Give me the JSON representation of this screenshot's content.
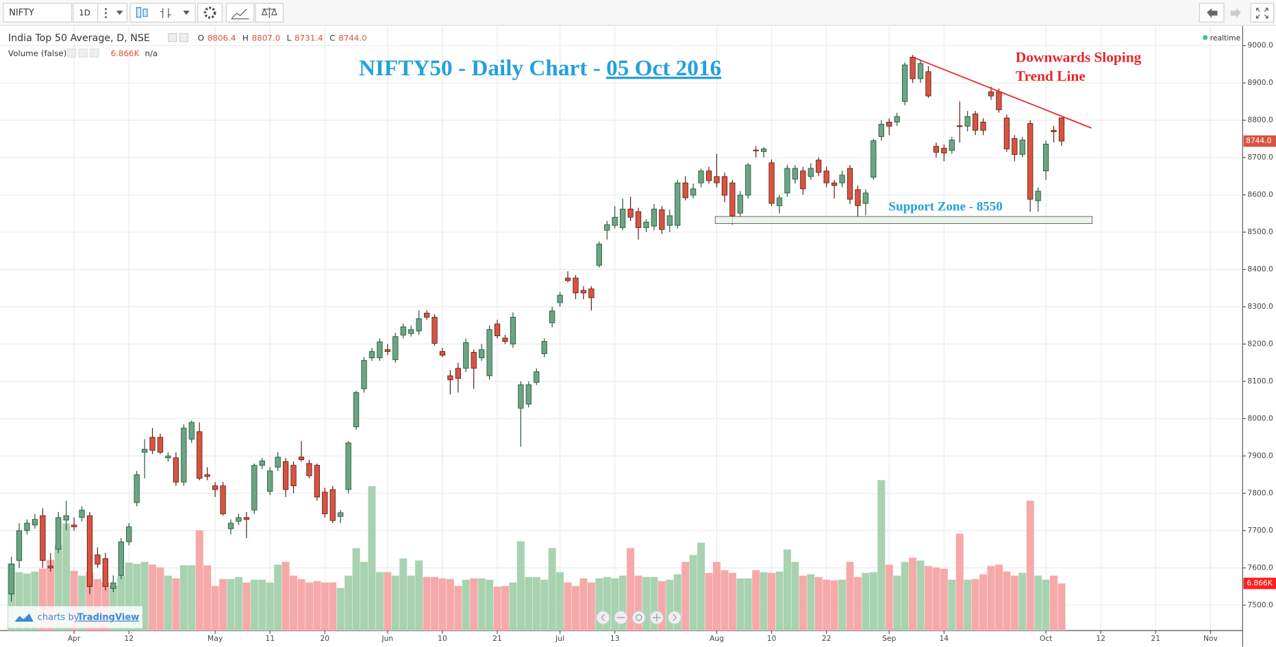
{
  "toolbar": {
    "symbol": "NIFTY",
    "interval": "1D"
  },
  "chart_data": {
    "type": "candlestick",
    "title": "NIFTY50 - Daily Chart - ",
    "title_date": "05 Oct 2016",
    "instrument": "India Top 50 Average, D, NSE",
    "ohlc_legend": [
      {
        "label": "O",
        "value": "8806.4"
      },
      {
        "label": "H",
        "value": "8807.0"
      },
      {
        "label": "L",
        "value": "8731.4"
      },
      {
        "label": "C",
        "value": "8744.0"
      }
    ],
    "volume_legend": {
      "name": "Volume (false)",
      "value": "6.866K",
      "extra": "n/a"
    },
    "status": "realtime",
    "trend_line": {
      "text": [
        "Downwards Sloping",
        "Trend Line"
      ],
      "x": [
        115,
        137.8
      ],
      "y": [
        8969,
        8779
      ],
      "color": "#e8262b"
    },
    "support_zone": {
      "text": "Support Zone - 8550",
      "x": [
        89.8,
        137.9
      ],
      "y": [
        8542,
        8523
      ]
    },
    "up_color": "#6ba583",
    "down_color": "#d75442",
    "volume_up_color": "#a9d2b0",
    "volume_down_color": "#f6a9a9",
    "grid": true,
    "xlim": [
      -1.45,
      157.1
    ],
    "ylim": [
      7432,
      9052
    ],
    "yticks": [
      {
        "value": 7500,
        "label": "7500.0"
      },
      {
        "value": 7600,
        "label": "7600.0"
      },
      {
        "value": 7700,
        "label": "7700.0"
      },
      {
        "value": 7800,
        "label": "7800.0"
      },
      {
        "value": 7900,
        "label": "7900.0"
      },
      {
        "value": 8000,
        "label": "8000.0"
      },
      {
        "value": 8100,
        "label": "8100.0"
      },
      {
        "value": 8200,
        "label": "8200.0"
      },
      {
        "value": 8300,
        "label": "8300.0"
      },
      {
        "value": 8400,
        "label": "8400.0"
      },
      {
        "value": 8500,
        "label": "8500.0"
      },
      {
        "value": 8600,
        "label": "8600.0"
      },
      {
        "value": 8700,
        "label": "8700.0"
      },
      {
        "value": 8800,
        "label": "8800.0"
      },
      {
        "value": 8900,
        "label": "8900.0"
      },
      {
        "value": 9000,
        "label": "9000.0"
      }
    ],
    "xticks": [
      {
        "value": 8,
        "label": "Apr"
      },
      {
        "value": 15,
        "label": "12"
      },
      {
        "value": 26,
        "label": "May"
      },
      {
        "value": 33,
        "label": "11"
      },
      {
        "value": 40,
        "label": "20"
      },
      {
        "value": 48,
        "label": "Jun"
      },
      {
        "value": 55,
        "label": "10"
      },
      {
        "value": 62,
        "label": "21"
      },
      {
        "value": 70,
        "label": "Jul"
      },
      {
        "value": 77,
        "label": "13"
      },
      {
        "value": 90,
        "label": "Aug"
      },
      {
        "value": 97,
        "label": "10"
      },
      {
        "value": 104,
        "label": "22"
      },
      {
        "value": 112,
        "label": "Sep"
      },
      {
        "value": 119,
        "label": "14"
      },
      {
        "value": 132,
        "label": "Oct"
      },
      {
        "value": 139,
        "label": "12"
      },
      {
        "value": 146,
        "label": "21"
      },
      {
        "value": 153,
        "label": "Nov"
      }
    ],
    "open": [
      7530,
      7620,
      7700,
      7715,
      7740,
      7605,
      7650,
      7728,
      7715,
      7735,
      7740,
      7635,
      7625,
      7545,
      7580,
      7670,
      7775,
      7910,
      7950,
      7950,
      7895,
      7895,
      7830,
      7945,
      7965,
      7850,
      7820,
      7820,
      7705,
      7725,
      7735,
      7755,
      7875,
      7805,
      7870,
      7885,
      7875,
      7897,
      7880,
      7875,
      7803,
      7810,
      7738,
      7810,
      7978,
      8080,
      8163,
      8163,
      8185,
      8158,
      8224,
      8228,
      8235,
      8283,
      8272,
      8180,
      8115,
      8135,
      8135,
      8178,
      8163,
      8115,
      8254,
      8216,
      8200,
      8028,
      8039,
      8097,
      8174,
      8257,
      8311,
      8377,
      8377,
      8344,
      8348,
      8411,
      8505,
      8518,
      8512,
      8562,
      8555,
      8512,
      8516,
      8560,
      8518,
      8518,
      8632,
      8599,
      8632,
      8664,
      8649,
      8649,
      8632,
      8551,
      8599,
      8720,
      8716,
      8686,
      8571,
      8605,
      8642,
      8664,
      8649,
      8693,
      8664,
      8632,
      8632,
      8671,
      8614,
      8577,
      8647,
      8756,
      8795,
      8795,
      8850,
      8969,
      8911,
      8930,
      8730,
      8725,
      8719,
      8785,
      8784,
      8817,
      8795,
      8876,
      8876,
      8806,
      8751,
      8708,
      8791,
      8584,
      8664,
      8773,
      8806.4
    ],
    "high": [
      7630,
      7720,
      7730,
      7745,
      7760,
      7640,
      7750,
      7780,
      7735,
      7765,
      7750,
      7655,
      7640,
      7580,
      7680,
      7720,
      7860,
      7945,
      7975,
      7960,
      7910,
      7910,
      7985,
      7995,
      7990,
      7870,
      7830,
      7830,
      7730,
      7745,
      7750,
      7880,
      7895,
      7870,
      7910,
      7895,
      7885,
      7940,
      7890,
      7880,
      7815,
      7820,
      7755,
      7940,
      8075,
      8165,
      8190,
      8215,
      8200,
      8230,
      8255,
      8250,
      8290,
      8290,
      8280,
      8190,
      8130,
      8150,
      8215,
      8185,
      8200,
      8250,
      8265,
      8225,
      8285,
      8100,
      8100,
      8135,
      8215,
      8300,
      8340,
      8395,
      8385,
      8355,
      8355,
      8475,
      8530,
      8570,
      8590,
      8595,
      8565,
      8535,
      8575,
      8570,
      8560,
      8640,
      8650,
      8630,
      8670,
      8675,
      8710,
      8660,
      8640,
      8610,
      8685,
      8730,
      8728,
      8695,
      8600,
      8680,
      8680,
      8675,
      8685,
      8700,
      8675,
      8640,
      8665,
      8680,
      8625,
      8615,
      8750,
      8800,
      8805,
      8820,
      8955,
      8975,
      8960,
      8945,
      8740,
      8735,
      8755,
      8850,
      8825,
      8825,
      8805,
      8890,
      8885,
      8815,
      8760,
      8755,
      8800,
      8620,
      8745,
      8785,
      8807.0
    ],
    "low": [
      7510,
      7600,
      7690,
      7705,
      7600,
      7590,
      7640,
      7700,
      7700,
      7725,
      7530,
      7600,
      7540,
      7535,
      7570,
      7660,
      7765,
      7840,
      7905,
      7905,
      7885,
      7820,
      7820,
      7935,
      7835,
      7835,
      7790,
      7740,
      7690,
      7715,
      7680,
      7745,
      7865,
      7795,
      7860,
      7790,
      7800,
      7885,
      7840,
      7780,
      7735,
      7720,
      7720,
      7800,
      7970,
      8070,
      8155,
      8155,
      8170,
      8150,
      8215,
      8220,
      8225,
      8265,
      8195,
      8165,
      8065,
      8070,
      8125,
      8080,
      8155,
      8105,
      8215,
      8200,
      8190,
      7925,
      8030,
      8090,
      8165,
      8245,
      8300,
      8365,
      8320,
      8320,
      8290,
      8405,
      8480,
      8510,
      8505,
      8530,
      8480,
      8500,
      8505,
      8495,
      8500,
      8510,
      8585,
      8590,
      8620,
      8630,
      8620,
      8580,
      8520,
      8540,
      8590,
      8700,
      8700,
      8570,
      8550,
      8595,
      8630,
      8600,
      8640,
      8650,
      8620,
      8590,
      8620,
      8575,
      8540,
      8545,
      8640,
      8745,
      8760,
      8785,
      8840,
      8900,
      8900,
      8860,
      8700,
      8690,
      8710,
      8740,
      8770,
      8760,
      8760,
      8855,
      8820,
      8715,
      8690,
      8700,
      8555,
      8555,
      8640,
      8740,
      8731.4
    ],
    "close": [
      7610,
      7700,
      7720,
      7730,
      7620,
      7600,
      7735,
      7740,
      7710,
      7755,
      7550,
      7610,
      7550,
      7560,
      7670,
      7710,
      7850,
      7918,
      7915,
      7910,
      7900,
      7830,
      7975,
      7990,
      7840,
      7845,
      7810,
      7745,
      7720,
      7735,
      7730,
      7875,
      7887,
      7860,
      7897,
      7810,
      7820,
      7890,
      7847,
      7790,
      7745,
      7727,
      7748,
      7935,
      8070,
      8156,
      8180,
      8206,
      8180,
      8220,
      8246,
      8239,
      8268,
      8272,
      8202,
      8170,
      8104,
      8108,
      8204,
      8135,
      8185,
      8239,
      8222,
      8207,
      8272,
      8091,
      8091,
      8126,
      8207,
      8289,
      8331,
      8370,
      8337,
      8337,
      8324,
      8468,
      8520,
      8540,
      8562,
      8540,
      8512,
      8527,
      8562,
      8507,
      8544,
      8632,
      8592,
      8616,
      8664,
      8638,
      8632,
      8599,
      8544,
      8599,
      8680,
      8718,
      8723,
      8577,
      8592,
      8671,
      8671,
      8616,
      8671,
      8660,
      8632,
      8625,
      8653,
      8588,
      8571,
      8605,
      8745,
      8789,
      8784,
      8810,
      8948,
      8911,
      8952,
      8865,
      8714,
      8712,
      8747,
      8784,
      8810,
      8773,
      8773,
      8865,
      8828,
      8723,
      8708,
      8747,
      8588,
      8610,
      8736,
      8769,
      8744.0
    ],
    "volume": [
      9.8,
      8.5,
      8.3,
      8.6,
      9.0,
      10.3,
      12.5,
      15.6,
      8.7,
      8.0,
      8.5,
      7.5,
      7.0,
      6.5,
      8.0,
      9.9,
      9.7,
      10.0,
      9.6,
      9.2,
      8.0,
      7.6,
      9.5,
      9.5,
      14.6,
      9.5,
      6.5,
      7.5,
      7.5,
      7.8,
      7.0,
      7.4,
      7.4,
      7.0,
      9.6,
      10.0,
      8.0,
      7.5,
      7.0,
      7.2,
      7.0,
      7.0,
      6.2,
      8.0,
      12.0,
      10.0,
      21.0,
      8.5,
      8.5,
      8.0,
      10.5,
      8.0,
      10.2,
      7.8,
      7.8,
      7.6,
      7.5,
      6.5,
      7.4,
      7.6,
      7.6,
      7.4,
      6.4,
      6.5,
      7.0,
      13.0,
      7.8,
      7.8,
      7.4,
      12.0,
      8.5,
      7.0,
      6.5,
      7.6,
      7.0,
      7.6,
      7.8,
      7.6,
      8.0,
      12.0,
      8.0,
      7.8,
      7.8,
      7.2,
      7.4,
      8.2,
      10.0,
      11.0,
      12.8,
      8.4,
      10.0,
      8.8,
      8.4,
      7.6,
      7.6,
      8.8,
      8.5,
      8.4,
      8.6,
      11.8,
      10.0,
      8.0,
      8.2,
      7.8,
      7.4,
      7.3,
      7.4,
      10.0,
      7.8,
      8.4,
      8.5,
      21.9,
      9.6,
      8.0,
      10.0,
      10.6,
      10.2,
      9.4,
      9.2,
      9.0,
      7.4,
      14.1,
      7.4,
      7.5,
      8.2,
      9.4,
      9.6,
      8.6,
      8.0,
      8.4,
      18.9,
      8.0,
      7.4,
      8.0,
      6.866
    ]
  },
  "branding": {
    "prefix": "charts by",
    "name": "TradingView"
  }
}
